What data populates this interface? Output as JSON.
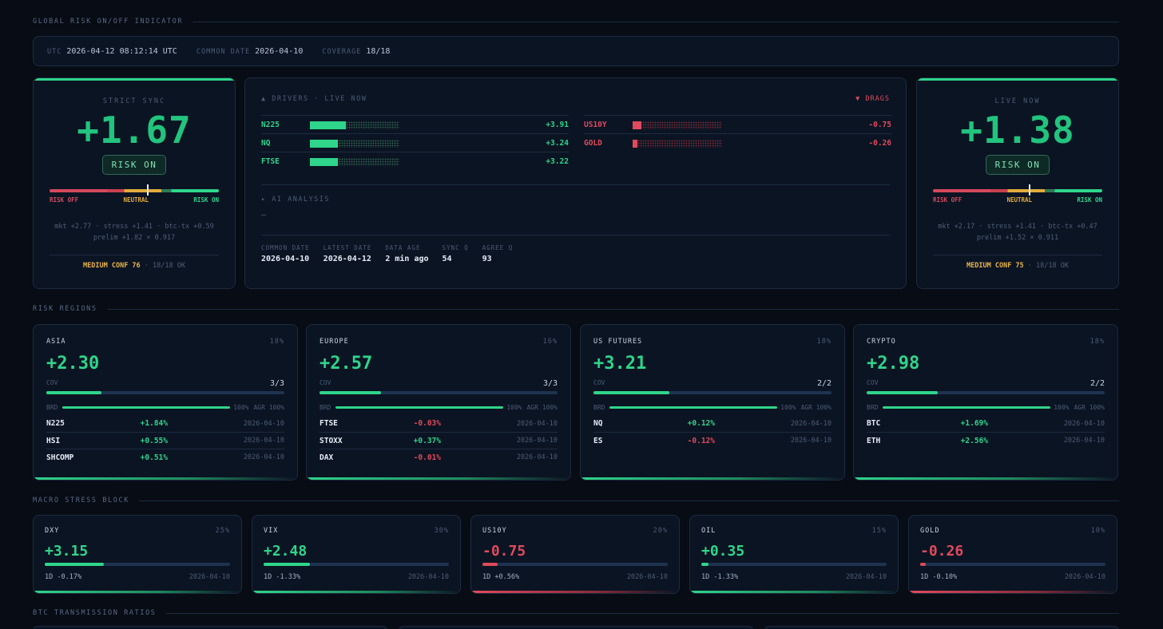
{
  "sections": {
    "global": "GLOBAL RISK ON/OFF INDICATOR",
    "regions": "RISK REGIONS",
    "macro": "MACRO STRESS BLOCK",
    "btc": "BTC TRANSMISSION RATIOS"
  },
  "status": {
    "utc_label": "UTC",
    "utc_value": "2026-04-12 08:12:14 UTC",
    "common_label": "COMMON DATE",
    "common_value": "2026-04-10",
    "coverage_label": "COVERAGE",
    "coverage_value": "18/18"
  },
  "strict": {
    "label": "STRICT SYNC",
    "value": "+1.67",
    "state": "RISK ON",
    "gauge_level": 0.58,
    "gauge_off": "RISK OFF",
    "gauge_neutral": "NEUTRAL",
    "gauge_on": "RISK ON",
    "detail_1": "mkt +2.77 · stress +1.41 · btc-tx +0.59",
    "detail_2": "prelim +1.82 × 0.917",
    "conf": "MEDIUM CONF 76",
    "ok": " · 18/18 OK"
  },
  "live": {
    "label": "LIVE NOW",
    "value": "+1.38",
    "state": "RISK ON",
    "gauge_level": 0.57,
    "gauge_off": "RISK OFF",
    "gauge_neutral": "NEUTRAL",
    "gauge_on": "RISK ON",
    "detail_1": "mkt +2.17 · stress +1.41 · btc-tx +0.47",
    "detail_2": "prelim +1.52 × 0.911",
    "conf": "MEDIUM CONF 75",
    "ok": " · 18/18 OK"
  },
  "drivers": {
    "title": "▲ DRIVERS · LIVE NOW",
    "drags_title": "▼ DRAGS",
    "up": [
      {
        "name": "N225",
        "value": "+3.91",
        "level": 0.4
      },
      {
        "name": "NQ",
        "value": "+3.24",
        "level": 0.31
      },
      {
        "name": "FTSE",
        "value": "+3.22",
        "level": 0.31
      }
    ],
    "down": [
      {
        "name": "US10Y",
        "value": "-0.75",
        "level": 0.1
      },
      {
        "name": "GOLD",
        "value": "-0.26",
        "level": 0.05
      }
    ],
    "ai_title": "▸ AI ANALYSIS",
    "ai_text": "—",
    "meta": [
      {
        "k": "COMMON DATE",
        "v": "2026-04-10"
      },
      {
        "k": "LATEST DATE",
        "v": "2026-04-12"
      },
      {
        "k": "DATA AGE",
        "v": "2 min ago"
      },
      {
        "k": "SYNC Q",
        "v": "54"
      },
      {
        "k": "AGREE Q",
        "v": "93"
      }
    ]
  },
  "regions": [
    {
      "name": "ASIA",
      "weight": "18%",
      "value": "+2.30",
      "cov_label": "COV",
      "cov": "3/3",
      "cov_level": 0.23,
      "brd_label": "BRD",
      "brd": "100%",
      "agr": "AGR 100%",
      "rows": [
        {
          "t": "N225",
          "c": "+1.84%",
          "d": "2026-04-10",
          "dir": "up"
        },
        {
          "t": "HSI",
          "c": "+0.55%",
          "d": "2026-04-10",
          "dir": "up"
        },
        {
          "t": "SHCOMP",
          "c": "+0.51%",
          "d": "2026-04-10",
          "dir": "up"
        }
      ]
    },
    {
      "name": "EUROPE",
      "weight": "16%",
      "value": "+2.57",
      "cov_label": "COV",
      "cov": "3/3",
      "cov_level": 0.26,
      "brd_label": "BRD",
      "brd": "100%",
      "agr": "AGR 100%",
      "rows": [
        {
          "t": "FTSE",
          "c": "-0.03%",
          "d": "2026-04-10",
          "dir": "dn"
        },
        {
          "t": "STOXX",
          "c": "+0.37%",
          "d": "2026-04-10",
          "dir": "up"
        },
        {
          "t": "DAX",
          "c": "-0.01%",
          "d": "2026-04-10",
          "dir": "dn"
        }
      ]
    },
    {
      "name": "US FUTURES",
      "weight": "18%",
      "value": "+3.21",
      "cov_label": "COV",
      "cov": "2/2",
      "cov_level": 0.32,
      "brd_label": "BRD",
      "brd": "100%",
      "agr": "AGR 100%",
      "rows": [
        {
          "t": "NQ",
          "c": "+0.12%",
          "d": "2026-04-10",
          "dir": "up"
        },
        {
          "t": "ES",
          "c": "-0.12%",
          "d": "2026-04-10",
          "dir": "dn"
        }
      ]
    },
    {
      "name": "CRYPTO",
      "weight": "18%",
      "value": "+2.98",
      "cov_label": "COV",
      "cov": "2/2",
      "cov_level": 0.3,
      "brd_label": "BRD",
      "brd": "100%",
      "agr": "AGR 100%",
      "rows": [
        {
          "t": "BTC",
          "c": "+1.69%",
          "d": "2026-04-10",
          "dir": "up"
        },
        {
          "t": "ETH",
          "c": "+2.56%",
          "d": "2026-04-10",
          "dir": "up"
        }
      ]
    }
  ],
  "macro": [
    {
      "name": "DXY",
      "weight": "25%",
      "value": "+3.15",
      "change": "1D -0.17%",
      "date": "2026-04-10",
      "level": 0.32,
      "dir": "pos"
    },
    {
      "name": "VIX",
      "weight": "30%",
      "value": "+2.48",
      "change": "1D -1.33%",
      "date": "2026-04-10",
      "level": 0.25,
      "dir": "pos"
    },
    {
      "name": "US10Y",
      "weight": "20%",
      "value": "-0.75",
      "change": "1D +0.56%",
      "date": "2026-04-10",
      "level": 0.08,
      "dir": "neg"
    },
    {
      "name": "OIL",
      "weight": "15%",
      "value": "+0.35",
      "change": "1D -1.33%",
      "date": "2026-04-10",
      "level": 0.04,
      "dir": "pos"
    },
    {
      "name": "GOLD",
      "weight": "10%",
      "value": "-0.26",
      "change": "1D -0.10%",
      "date": "2026-04-10",
      "level": 0.03,
      "dir": "neg"
    }
  ],
  "colors": {
    "positive": "#2fd58a",
    "negative": "#e04a5c",
    "neutral": "#e2ac3b",
    "background": "#070c15"
  }
}
